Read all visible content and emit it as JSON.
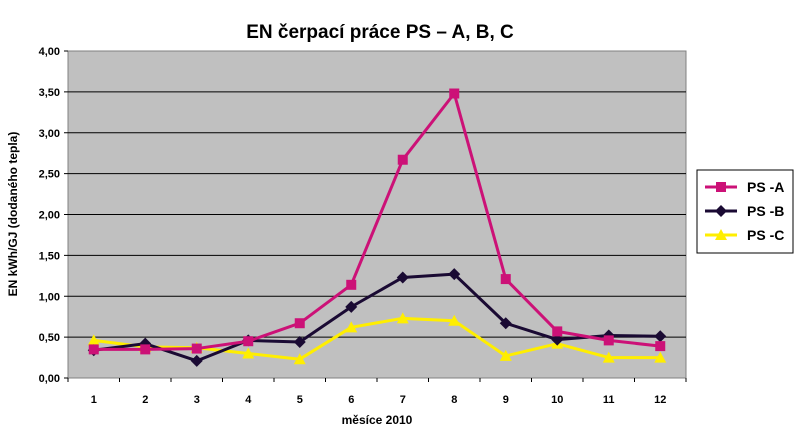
{
  "chart_data": {
    "type": "line",
    "title": "EN čerpací práce PS –  A, B, C",
    "xlabel": "měsíce 2010",
    "ylabel": "EN kWh/GJ (dodaného tepla)",
    "categories": [
      "1",
      "2",
      "3",
      "4",
      "5",
      "6",
      "7",
      "8",
      "9",
      "10",
      "11",
      "12"
    ],
    "ylim": [
      0,
      4
    ],
    "yticks": [
      "0,00",
      "0,50",
      "1,00",
      "1,50",
      "2,00",
      "2,50",
      "3,00",
      "3,50",
      "4,00"
    ],
    "grid": true,
    "legend_position": "right",
    "plot_background": "#c0c0c0",
    "series": [
      {
        "name": "PS -A",
        "color": "#cc1177",
        "marker": "square",
        "values": [
          0.35,
          0.35,
          0.36,
          0.45,
          0.67,
          1.14,
          2.67,
          3.48,
          1.21,
          0.57,
          0.46,
          0.39
        ]
      },
      {
        "name": "PS -B",
        "color": "#1a0a33",
        "marker": "diamond",
        "values": [
          0.34,
          0.42,
          0.21,
          0.46,
          0.44,
          0.87,
          1.23,
          1.27,
          0.67,
          0.47,
          0.52,
          0.51
        ]
      },
      {
        "name": "PS -C",
        "color": "#ffee00",
        "marker": "triangle",
        "values": [
          0.46,
          0.38,
          0.37,
          0.3,
          0.23,
          0.62,
          0.73,
          0.7,
          0.27,
          0.42,
          0.25,
          0.25
        ]
      }
    ]
  }
}
